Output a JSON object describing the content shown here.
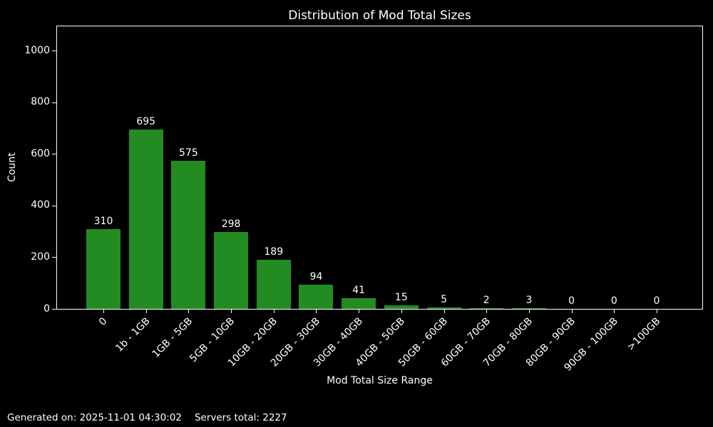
{
  "title": "Distribution of Mod Total Sizes",
  "footer": {
    "generated": "Generated on: 2025-11-01 04:30:02",
    "servers": "Servers total: 2227"
  },
  "chart_data": {
    "type": "bar",
    "title": "Distribution of Mod Total Sizes",
    "xlabel": "Mod Total Size Range",
    "ylabel": "Count",
    "categories": [
      "0",
      "1b - 1GB",
      "1GB - 5GB",
      "5GB - 10GB",
      "10GB - 20GB",
      "20GB - 30GB",
      "30GB - 40GB",
      "40GB - 50GB",
      "50GB - 60GB",
      "60GB - 70GB",
      "70GB - 80GB",
      "80GB - 90GB",
      "90GB - 100GB",
      ">100GB"
    ],
    "values": [
      310,
      695,
      575,
      298,
      189,
      94,
      41,
      15,
      5,
      2,
      3,
      0,
      0,
      0
    ],
    "bar_labels": true,
    "yticks": [
      0,
      200,
      400,
      600,
      800,
      1000
    ],
    "ylim": [
      0,
      1095
    ],
    "grid": false,
    "legend": null,
    "bar_color": "#228B22",
    "background_color": "#000000",
    "text_color": "#ffffff"
  }
}
